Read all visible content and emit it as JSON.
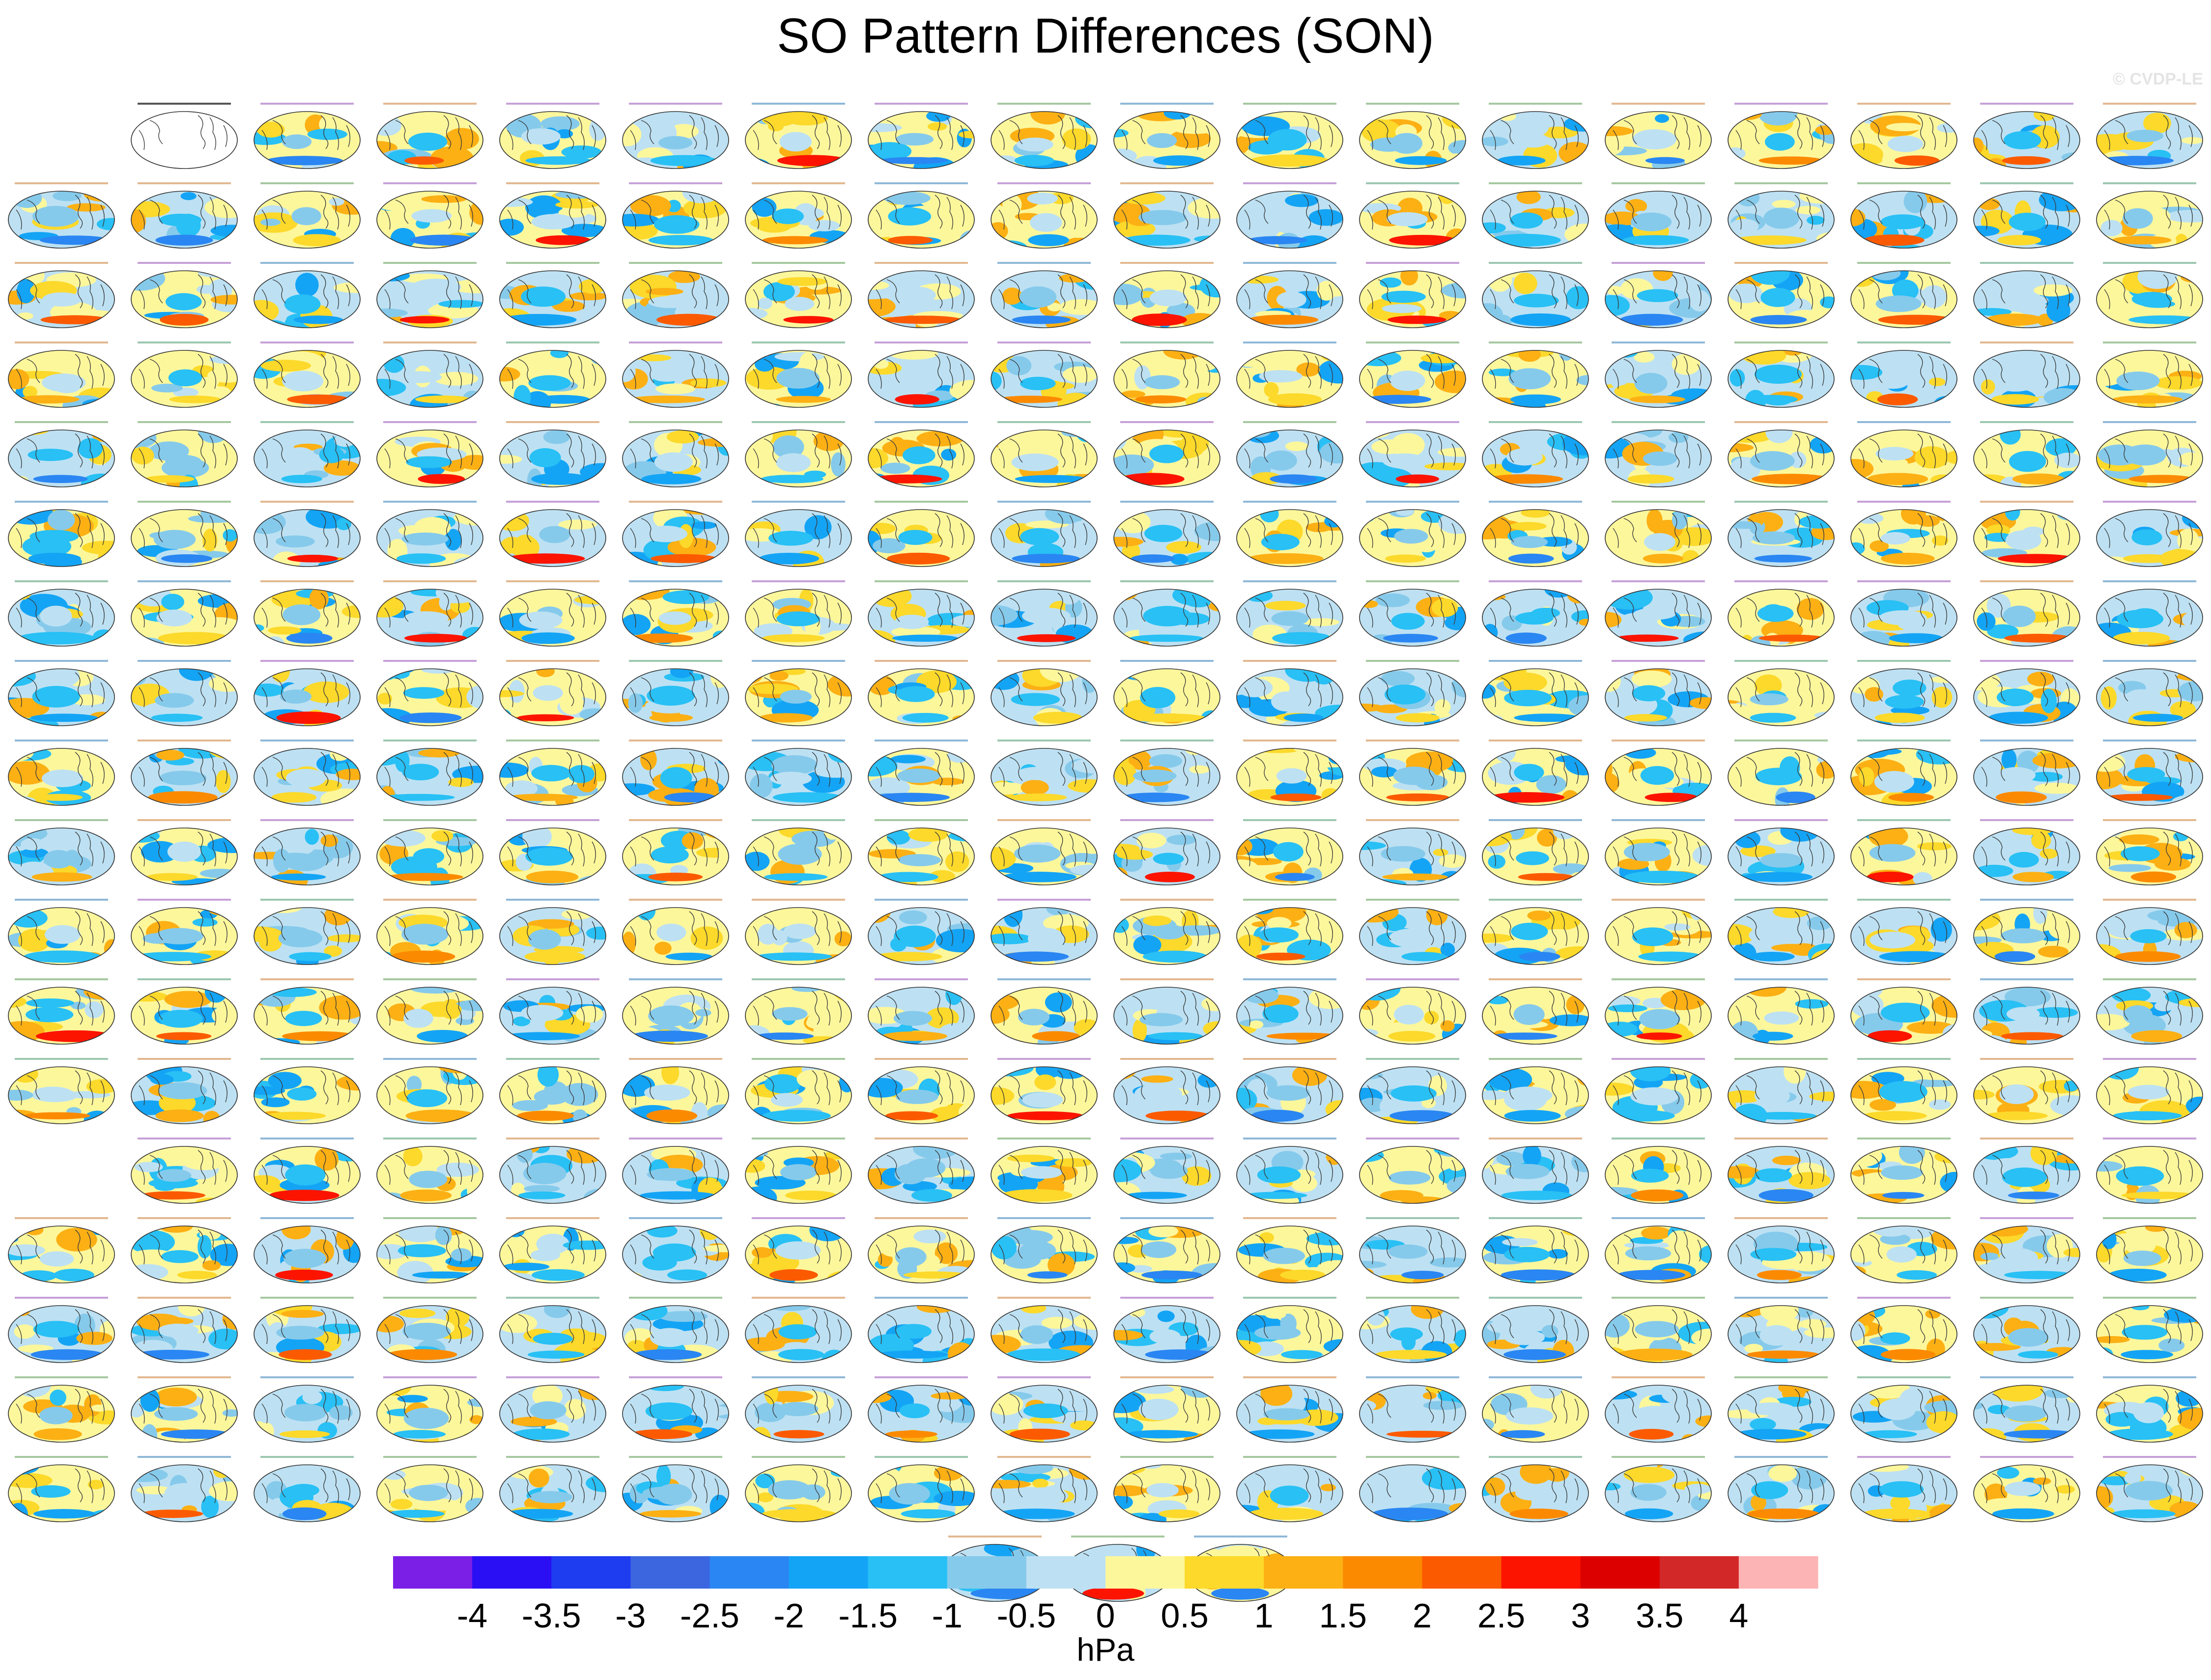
{
  "title": "SO Pattern Differences (SON)",
  "watermark": "© CVDP-LE",
  "colorbar": {
    "units": "hPa",
    "tick_labels": [
      "-4",
      "-3.5",
      "-3",
      "-2.5",
      "-2",
      "-1.5",
      "-1",
      "-0.5",
      "0",
      "0.5",
      "1",
      "1.5",
      "2",
      "2.5",
      "3",
      "3.5",
      "4"
    ],
    "colors": [
      "#7b1ee6",
      "#2a0ff5",
      "#1e3cf0",
      "#3b66e0",
      "#2a86f2",
      "#14a4f5",
      "#28c0f5",
      "#86caeb",
      "#bde1f3",
      "#fdf79c",
      "#fcd92a",
      "#fcb014",
      "#fc8a00",
      "#fc5a00",
      "#fc1400",
      "#dc0000",
      "#d22828",
      "#fcb4b4"
    ]
  },
  "chart_data": {
    "type": "heatmap",
    "title": "SO Pattern Differences (SON)",
    "description_units": "hPa",
    "levels": [
      -4,
      -3.5,
      -3,
      -2.5,
      -2,
      -1.5,
      -1,
      -0.5,
      0,
      0.5,
      1,
      1.5,
      2,
      2.5,
      3,
      3.5,
      4
    ],
    "panel_grid": {
      "columns": 18,
      "row_counts": [
        17,
        18,
        18,
        18,
        18,
        18,
        18,
        18,
        18,
        18,
        18,
        18,
        18,
        17,
        18,
        18,
        18,
        18,
        3
      ],
      "first_panel_is_reference": true
    }
  }
}
